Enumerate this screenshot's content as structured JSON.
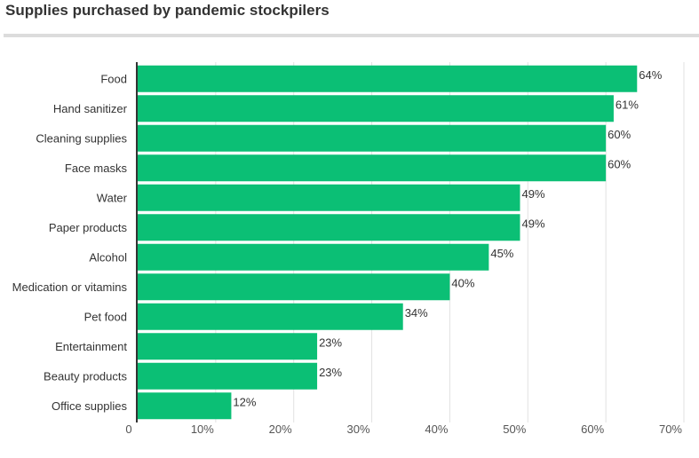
{
  "chart_data": {
    "type": "bar",
    "orientation": "horizontal",
    "title": "Supplies purchased by pandemic stockpilers",
    "categories": [
      "Food",
      "Hand sanitizer",
      "Cleaning supplies",
      "Face masks",
      "Water",
      "Paper products",
      "Alcohol",
      "Medication or vitamins",
      "Pet food",
      "Entertainment",
      "Beauty products",
      "Office supplies"
    ],
    "values": [
      64,
      61,
      60,
      60,
      49,
      49,
      45,
      40,
      34,
      23,
      23,
      12
    ],
    "value_labels": [
      "64%",
      "61%",
      "60%",
      "60%",
      "49%",
      "49%",
      "45%",
      "40%",
      "34%",
      "23%",
      "23%",
      "12%"
    ],
    "xlim": [
      0,
      70
    ],
    "x_ticks": [
      0,
      10,
      20,
      30,
      40,
      50,
      60,
      70
    ],
    "x_tick_labels": [
      "0",
      "10%",
      "20%",
      "30%",
      "40%",
      "50%",
      "60%",
      "70%"
    ],
    "grid": "vertical",
    "legend": "none",
    "colors": {
      "bar": "#0bbf75",
      "grid": "#e2e2e2",
      "axis": "#333333"
    }
  }
}
